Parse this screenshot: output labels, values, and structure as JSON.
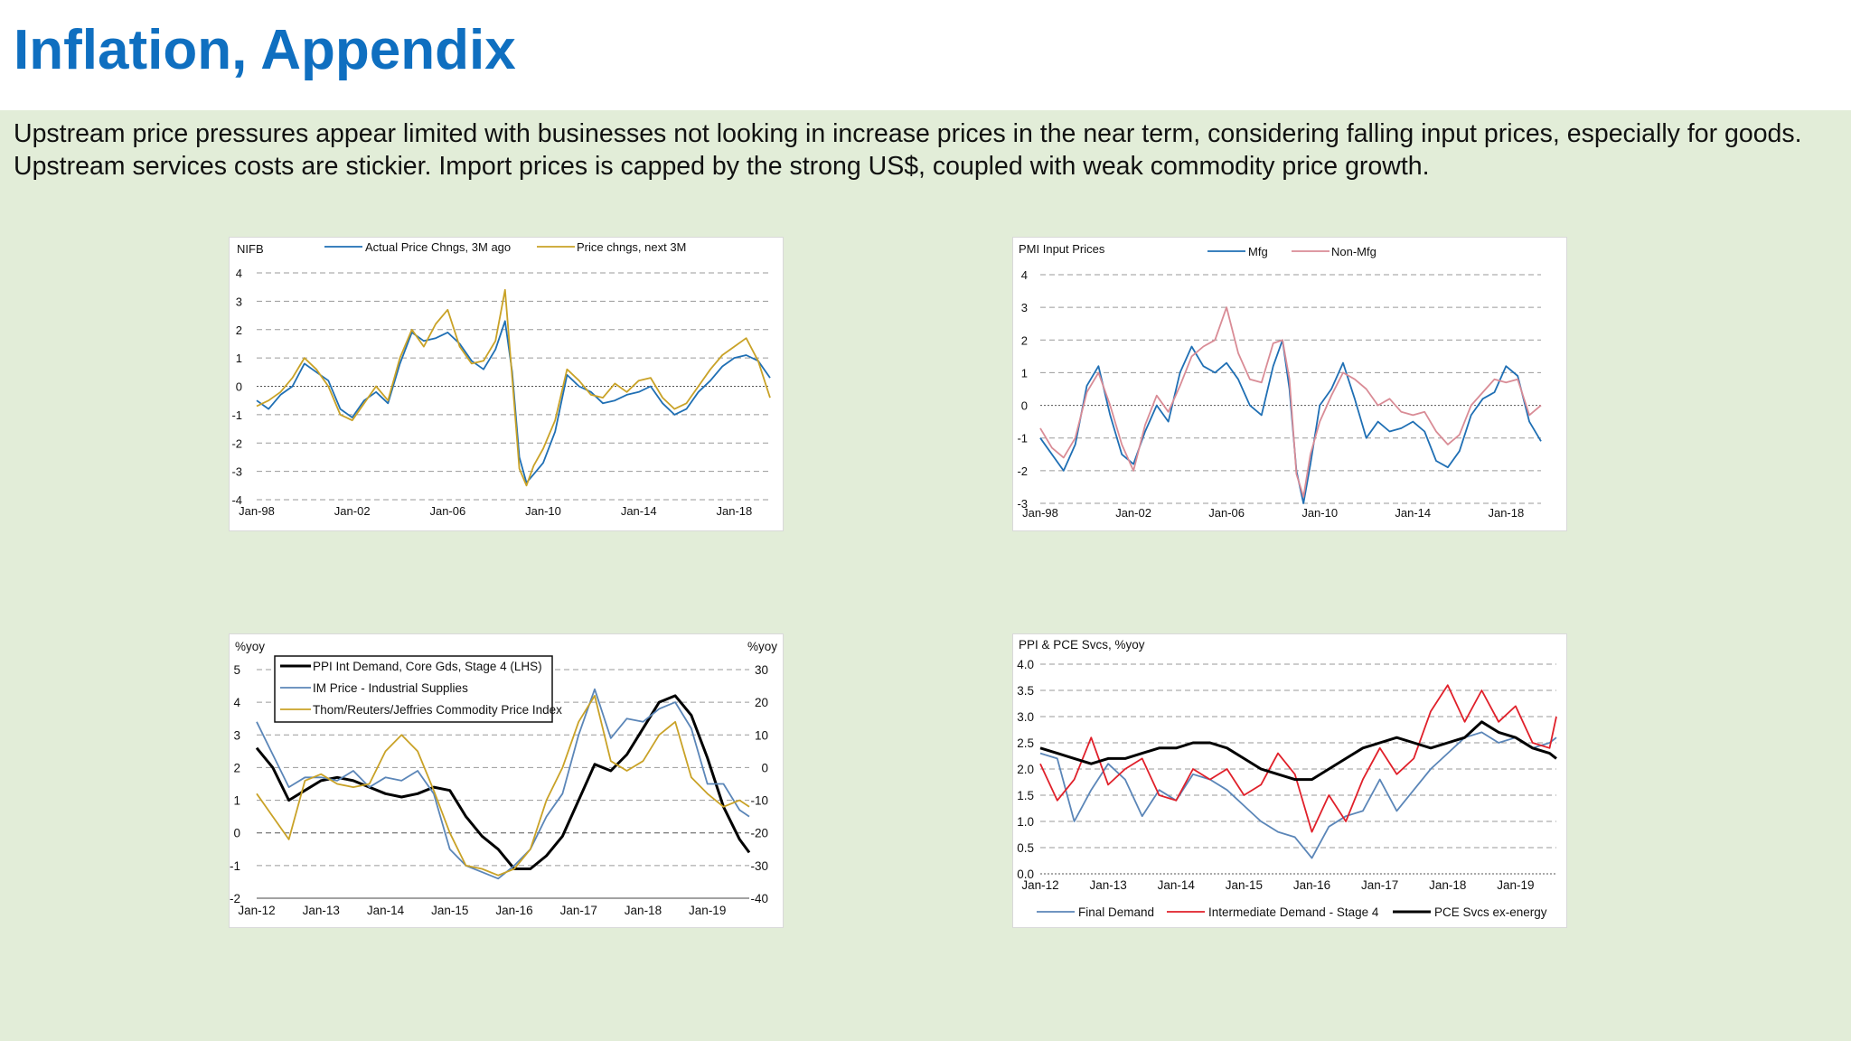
{
  "page": {
    "title": "Inflation, Appendix",
    "subtitle": "Upstream price pressures appear limited with businesses not looking in increase prices in the near term, considering falling input prices, especially for goods. Upstream services costs are stickier. Import prices is capped by the strong US$, coupled with weak commodity price growth."
  },
  "colors": {
    "title": "#0f6fc0",
    "background": "#e2edd8",
    "blue": "#1f6fb4",
    "gold": "#c9a227",
    "pink": "#d98c96",
    "red": "#e0202a",
    "black": "#000000",
    "steel": "#5b86b8"
  },
  "chart_data": [
    {
      "id": "c1",
      "type": "line",
      "title": "NIFB",
      "x_ticks": [
        "Jan-98",
        "Jan-02",
        "Jan-06",
        "Jan-10",
        "Jan-14",
        "Jan-18"
      ],
      "xlim": [
        1998.0,
        2019.5
      ],
      "ylim": [
        -4,
        4
      ],
      "y_ticks": [
        "4",
        "3",
        "2",
        "1",
        "0",
        "-1",
        "-2",
        "-3",
        "-4"
      ],
      "grid": true,
      "legend": "top",
      "series": [
        {
          "name": "Actual Price Chngs, 3M ago",
          "color": "#1f6fb4",
          "x": [
            1998.0,
            1998.5,
            1999.0,
            1999.5,
            2000.0,
            2000.5,
            2001.0,
            2001.5,
            2002.0,
            2002.5,
            2003.0,
            2003.5,
            2004.0,
            2004.5,
            2005.0,
            2005.5,
            2006.0,
            2006.5,
            2007.0,
            2007.5,
            2008.0,
            2008.4,
            2008.7,
            2009.0,
            2009.3,
            2009.6,
            2010.0,
            2010.5,
            2011.0,
            2011.5,
            2012.0,
            2012.5,
            2013.0,
            2013.5,
            2014.0,
            2014.5,
            2015.0,
            2015.5,
            2016.0,
            2016.5,
            2017.0,
            2017.5,
            2018.0,
            2018.5,
            2019.0,
            2019.5
          ],
          "y": [
            -0.5,
            -0.8,
            -0.3,
            0.0,
            0.8,
            0.5,
            0.2,
            -0.8,
            -1.1,
            -0.5,
            -0.2,
            -0.6,
            0.8,
            1.9,
            1.6,
            1.7,
            1.9,
            1.5,
            0.9,
            0.6,
            1.3,
            2.3,
            0.5,
            -2.5,
            -3.4,
            -3.1,
            -2.7,
            -1.6,
            0.4,
            0.0,
            -0.2,
            -0.6,
            -0.5,
            -0.3,
            -0.2,
            0.0,
            -0.6,
            -1.0,
            -0.8,
            -0.2,
            0.2,
            0.7,
            1.0,
            1.1,
            0.9,
            0.3
          ]
        },
        {
          "name": "Price chngs, next 3M",
          "color": "#c9a227",
          "x": [
            1998.0,
            1998.5,
            1999.0,
            1999.5,
            2000.0,
            2000.5,
            2001.0,
            2001.5,
            2002.0,
            2002.5,
            2003.0,
            2003.5,
            2004.0,
            2004.5,
            2005.0,
            2005.5,
            2006.0,
            2006.5,
            2007.0,
            2007.5,
            2008.0,
            2008.4,
            2008.7,
            2009.0,
            2009.3,
            2009.6,
            2010.0,
            2010.5,
            2011.0,
            2011.5,
            2012.0,
            2012.5,
            2013.0,
            2013.5,
            2014.0,
            2014.5,
            2015.0,
            2015.5,
            2016.0,
            2016.5,
            2017.0,
            2017.5,
            2018.0,
            2018.5,
            2019.0,
            2019.5
          ],
          "y": [
            -0.7,
            -0.5,
            -0.2,
            0.3,
            1.0,
            0.6,
            0.0,
            -1.0,
            -1.2,
            -0.6,
            0.0,
            -0.5,
            1.0,
            2.0,
            1.4,
            2.2,
            2.7,
            1.4,
            0.8,
            0.9,
            1.6,
            3.4,
            0.3,
            -2.9,
            -3.5,
            -2.8,
            -2.2,
            -1.2,
            0.6,
            0.2,
            -0.3,
            -0.4,
            0.1,
            -0.2,
            0.2,
            0.3,
            -0.4,
            -0.8,
            -0.6,
            0.0,
            0.6,
            1.1,
            1.4,
            1.7,
            0.9,
            -0.4
          ]
        }
      ]
    },
    {
      "id": "c2",
      "type": "line",
      "title": "PMI Input Prices",
      "x_ticks": [
        "Jan-98",
        "Jan-02",
        "Jan-06",
        "Jan-10",
        "Jan-14",
        "Jan-18"
      ],
      "xlim": [
        1998.0,
        2019.5
      ],
      "ylim": [
        -3,
        4
      ],
      "y_ticks": [
        "4",
        "3",
        "2",
        "1",
        "0",
        "-1",
        "-2",
        "-3"
      ],
      "grid": true,
      "legend": "top",
      "series": [
        {
          "name": "Mfg",
          "color": "#1f6fb4",
          "x": [
            1998.0,
            1998.5,
            1999.0,
            1999.5,
            2000.0,
            2000.5,
            2001.0,
            2001.5,
            2002.0,
            2002.5,
            2003.0,
            2003.5,
            2004.0,
            2004.5,
            2005.0,
            2005.5,
            2006.0,
            2006.5,
            2007.0,
            2007.5,
            2008.0,
            2008.4,
            2008.7,
            2009.0,
            2009.3,
            2009.6,
            2010.0,
            2010.5,
            2011.0,
            2011.5,
            2012.0,
            2012.5,
            2013.0,
            2013.5,
            2014.0,
            2014.5,
            2015.0,
            2015.5,
            2016.0,
            2016.5,
            2017.0,
            2017.5,
            2018.0,
            2018.5,
            2019.0,
            2019.5
          ],
          "y": [
            -1.0,
            -1.5,
            -2.0,
            -1.2,
            0.6,
            1.2,
            -0.3,
            -1.5,
            -1.8,
            -0.8,
            0.0,
            -0.5,
            1.0,
            1.8,
            1.2,
            1.0,
            1.3,
            0.8,
            0.0,
            -0.3,
            1.2,
            2.0,
            0.5,
            -2.0,
            -3.0,
            -1.8,
            0.0,
            0.5,
            1.3,
            0.2,
            -1.0,
            -0.5,
            -0.8,
            -0.7,
            -0.5,
            -0.8,
            -1.7,
            -1.9,
            -1.4,
            -0.3,
            0.2,
            0.4,
            1.2,
            0.9,
            -0.5,
            -1.1
          ]
        },
        {
          "name": "Non-Mfg",
          "color": "#d98c96",
          "x": [
            1998.0,
            1998.5,
            1999.0,
            1999.5,
            2000.0,
            2000.5,
            2001.0,
            2001.5,
            2002.0,
            2002.5,
            2003.0,
            2003.5,
            2004.0,
            2004.5,
            2005.0,
            2005.5,
            2006.0,
            2006.5,
            2007.0,
            2007.5,
            2008.0,
            2008.4,
            2008.7,
            2009.0,
            2009.3,
            2009.6,
            2010.0,
            2010.5,
            2011.0,
            2011.5,
            2012.0,
            2012.5,
            2013.0,
            2013.5,
            2014.0,
            2014.5,
            2015.0,
            2015.5,
            2016.0,
            2016.5,
            2017.0,
            2017.5,
            2018.0,
            2018.5,
            2019.0,
            2019.5
          ],
          "y": [
            -0.7,
            -1.3,
            -1.6,
            -1.0,
            0.4,
            1.0,
            0.0,
            -1.2,
            -2.0,
            -0.6,
            0.3,
            -0.2,
            0.6,
            1.5,
            1.8,
            2.0,
            3.0,
            1.6,
            0.8,
            0.7,
            1.9,
            2.0,
            0.8,
            -2.1,
            -2.8,
            -1.5,
            -0.5,
            0.3,
            1.0,
            0.8,
            0.5,
            0.0,
            0.2,
            -0.2,
            -0.3,
            -0.2,
            -0.8,
            -1.2,
            -0.9,
            0.0,
            0.4,
            0.8,
            0.7,
            0.8,
            -0.3,
            0.0
          ]
        }
      ]
    },
    {
      "id": "c3",
      "type": "line",
      "left_axis_label": "%yoy",
      "right_axis_label": "%yoy",
      "x_ticks": [
        "Jan-12",
        "Jan-13",
        "Jan-14",
        "Jan-15",
        "Jan-16",
        "Jan-17",
        "Jan-18",
        "Jan-19"
      ],
      "xlim": [
        2012.0,
        2019.65
      ],
      "ylim_left": [
        -2,
        5
      ],
      "ylim_right": [
        -40,
        30
      ],
      "y_ticks_left": [
        "5",
        "4",
        "3",
        "2",
        "1",
        "0",
        "-1",
        "-2"
      ],
      "y_ticks_right": [
        "30",
        "20",
        "10",
        "0",
        "-10",
        "-20",
        "-30",
        "-40"
      ],
      "grid": true,
      "legend": "top-left",
      "series": [
        {
          "name": "PPI Int Demand, Core Gds, Stage 4 (LHS)",
          "color": "#000000",
          "axis": "left",
          "x": [
            2012.0,
            2012.25,
            2012.5,
            2012.75,
            2013.0,
            2013.25,
            2013.5,
            2013.75,
            2014.0,
            2014.25,
            2014.5,
            2014.75,
            2015.0,
            2015.25,
            2015.5,
            2015.75,
            2016.0,
            2016.25,
            2016.5,
            2016.75,
            2017.0,
            2017.25,
            2017.5,
            2017.75,
            2018.0,
            2018.25,
            2018.5,
            2018.75,
            2019.0,
            2019.25,
            2019.5,
            2019.65
          ],
          "y": [
            2.6,
            2.0,
            1.0,
            1.3,
            1.6,
            1.7,
            1.6,
            1.4,
            1.2,
            1.1,
            1.2,
            1.4,
            1.3,
            0.5,
            -0.1,
            -0.5,
            -1.1,
            -1.1,
            -0.7,
            -0.1,
            1.0,
            2.1,
            1.9,
            2.4,
            3.2,
            4.0,
            4.2,
            3.6,
            2.3,
            0.8,
            -0.2,
            -0.6
          ]
        },
        {
          "name": "IM Price - Industrial Supplies",
          "color": "#5b86b8",
          "axis": "right",
          "x": [
            2012.0,
            2012.25,
            2012.5,
            2012.75,
            2013.0,
            2013.25,
            2013.5,
            2013.75,
            2014.0,
            2014.25,
            2014.5,
            2014.75,
            2015.0,
            2015.25,
            2015.5,
            2015.75,
            2016.0,
            2016.25,
            2016.5,
            2016.75,
            2017.0,
            2017.25,
            2017.5,
            2017.75,
            2018.0,
            2018.25,
            2018.5,
            2018.75,
            2019.0,
            2019.25,
            2019.5,
            2019.65
          ],
          "y": [
            14,
            4,
            -6,
            -3,
            -3,
            -4,
            -1,
            -6,
            -3,
            -4,
            -1,
            -8,
            -25,
            -30,
            -32,
            -34,
            -30,
            -25,
            -15,
            -8,
            10,
            24,
            9,
            15,
            14,
            18,
            20,
            12,
            -5,
            -5,
            -13,
            -15
          ]
        },
        {
          "name": "Thom/Reuters/Jeffries Commodity Price Index",
          "color": "#c9a227",
          "axis": "right",
          "x": [
            2012.0,
            2012.25,
            2012.5,
            2012.75,
            2013.0,
            2013.25,
            2013.5,
            2013.75,
            2014.0,
            2014.25,
            2014.5,
            2014.75,
            2015.0,
            2015.25,
            2015.5,
            2015.75,
            2016.0,
            2016.25,
            2016.5,
            2016.75,
            2017.0,
            2017.25,
            2017.5,
            2017.75,
            2018.0,
            2018.25,
            2018.5,
            2018.75,
            2019.0,
            2019.25,
            2019.5,
            2019.65
          ],
          "y": [
            -8,
            -15,
            -22,
            -4,
            -2,
            -5,
            -6,
            -5,
            5,
            10,
            5,
            -7,
            -20,
            -30,
            -31,
            -33,
            -31,
            -25,
            -10,
            0,
            14,
            22,
            2,
            -1,
            2,
            10,
            14,
            -3,
            -8,
            -12,
            -10,
            -12
          ]
        }
      ]
    },
    {
      "id": "c4",
      "type": "line",
      "title": "PPI & PCE Svcs, %yoy",
      "x_ticks": [
        "Jan-12",
        "Jan-13",
        "Jan-14",
        "Jan-15",
        "Jan-16",
        "Jan-17",
        "Jan-18",
        "Jan-19"
      ],
      "xlim": [
        2012.0,
        2019.6
      ],
      "ylim": [
        0,
        4
      ],
      "y_ticks": [
        "4.0",
        "3.5",
        "3.0",
        "2.5",
        "2.0",
        "1.5",
        "1.0",
        "0.5",
        "0.0"
      ],
      "grid": true,
      "legend": "bottom",
      "series": [
        {
          "name": "Final Demand",
          "color": "#5b86b8",
          "x": [
            2012.0,
            2012.25,
            2012.5,
            2012.75,
            2013.0,
            2013.25,
            2013.5,
            2013.75,
            2014.0,
            2014.25,
            2014.5,
            2014.75,
            2015.0,
            2015.25,
            2015.5,
            2015.75,
            2016.0,
            2016.25,
            2016.5,
            2016.75,
            2017.0,
            2017.25,
            2017.5,
            2017.75,
            2018.0,
            2018.25,
            2018.5,
            2018.75,
            2019.0,
            2019.25,
            2019.5,
            2019.6
          ],
          "y": [
            2.3,
            2.2,
            1.0,
            1.6,
            2.1,
            1.8,
            1.1,
            1.6,
            1.4,
            1.9,
            1.8,
            1.6,
            1.3,
            1.0,
            0.8,
            0.7,
            0.3,
            0.9,
            1.1,
            1.2,
            1.8,
            1.2,
            1.6,
            2.0,
            2.3,
            2.6,
            2.7,
            2.5,
            2.6,
            2.4,
            2.5,
            2.6
          ]
        },
        {
          "name": "Intermediate Demand - Stage 4",
          "color": "#e0202a",
          "x": [
            2012.0,
            2012.25,
            2012.5,
            2012.75,
            2013.0,
            2013.25,
            2013.5,
            2013.75,
            2014.0,
            2014.25,
            2014.5,
            2014.75,
            2015.0,
            2015.25,
            2015.5,
            2015.75,
            2016.0,
            2016.25,
            2016.5,
            2016.75,
            2017.0,
            2017.25,
            2017.5,
            2017.75,
            2018.0,
            2018.25,
            2018.5,
            2018.75,
            2019.0,
            2019.25,
            2019.5,
            2019.6
          ],
          "y": [
            2.1,
            1.4,
            1.8,
            2.6,
            1.7,
            2.0,
            2.2,
            1.5,
            1.4,
            2.0,
            1.8,
            2.0,
            1.5,
            1.7,
            2.3,
            1.9,
            0.8,
            1.5,
            1.0,
            1.8,
            2.4,
            1.9,
            2.2,
            3.1,
            3.6,
            2.9,
            3.5,
            2.9,
            3.2,
            2.5,
            2.4,
            3.0
          ]
        },
        {
          "name": "PCE Svcs ex-energy",
          "color": "#000000",
          "x": [
            2012.0,
            2012.25,
            2012.5,
            2012.75,
            2013.0,
            2013.25,
            2013.5,
            2013.75,
            2014.0,
            2014.25,
            2014.5,
            2014.75,
            2015.0,
            2015.25,
            2015.5,
            2015.75,
            2016.0,
            2016.25,
            2016.5,
            2016.75,
            2017.0,
            2017.25,
            2017.5,
            2017.75,
            2018.0,
            2018.25,
            2018.5,
            2018.75,
            2019.0,
            2019.25,
            2019.5,
            2019.6
          ],
          "y": [
            2.4,
            2.3,
            2.2,
            2.1,
            2.2,
            2.2,
            2.3,
            2.4,
            2.4,
            2.5,
            2.5,
            2.4,
            2.2,
            2.0,
            1.9,
            1.8,
            1.8,
            2.0,
            2.2,
            2.4,
            2.5,
            2.6,
            2.5,
            2.4,
            2.5,
            2.6,
            2.9,
            2.7,
            2.6,
            2.4,
            2.3,
            2.2
          ]
        }
      ]
    }
  ]
}
